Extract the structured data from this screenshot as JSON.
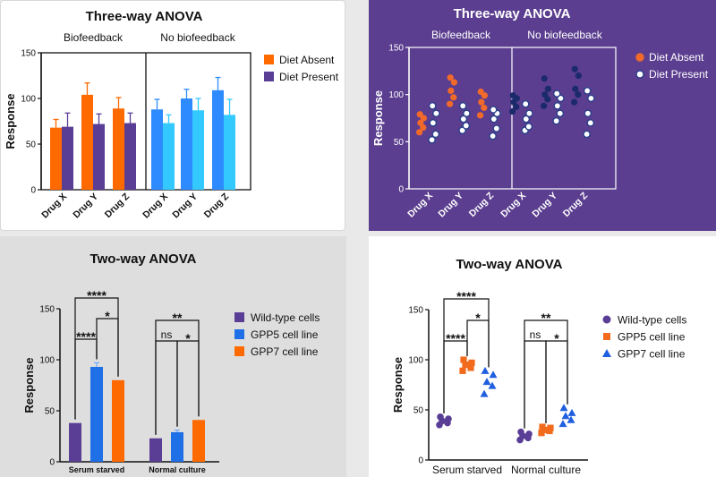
{
  "chart_data": [
    {
      "type": "bar",
      "title": "Three-way ANOVA",
      "ylabel": "Response",
      "ylim": [
        0,
        150
      ],
      "yticks": [
        "0",
        "50",
        "100",
        "150"
      ],
      "groups": [
        "Biofeedback",
        "No biofeedback"
      ],
      "categories": [
        "Drug X",
        "Drug Y",
        "Drug Z",
        "Drug X",
        "Drug Y",
        "Drug Z"
      ],
      "series": [
        {
          "name": "Diet Absent",
          "values": [
            68,
            104,
            89,
            88,
            100,
            109
          ],
          "errors": [
            9,
            13,
            12,
            11,
            10,
            14
          ],
          "color": "#ff6a00",
          "color_nb": "#2e8bff"
        },
        {
          "name": "Diet Present",
          "values": [
            69,
            72,
            73,
            73,
            87,
            82
          ],
          "errors": [
            15,
            11,
            11,
            9,
            13,
            17
          ],
          "color": "#5a3e96",
          "color_nb": "#33c9ff"
        }
      ],
      "legend": "right"
    },
    {
      "type": "scatter",
      "title": "Three-way ANOVA",
      "ylabel": "Response",
      "ylim": [
        0,
        150
      ],
      "yticks": [
        "0",
        "50",
        "100",
        "150"
      ],
      "groups": [
        "Biofeedback",
        "No biofeedback"
      ],
      "categories": [
        "Drug X",
        "Drug Y",
        "Drug Z",
        "Drug X",
        "Drug Y",
        "Drug Z"
      ],
      "series": [
        {
          "name": "Diet Absent",
          "points": [
            [
              60,
              65,
              70,
              75,
              79
            ],
            [
              90,
              97,
              104,
              113,
              118
            ],
            [
              78,
              86,
              92,
              99,
              103
            ],
            [
              82,
              87,
              92,
              96,
              99
            ],
            [
              88,
              95,
              100,
              106,
              117
            ],
            [
              92,
              100,
              106,
              120,
              127
            ]
          ],
          "color": "#f26a2a",
          "color_nb": "#1b2a6b"
        },
        {
          "name": "Diet Present",
          "points": [
            [
              52,
              58,
              70,
              80,
              88
            ],
            [
              62,
              67,
              74,
              80,
              88
            ],
            [
              56,
              64,
              74,
              80,
              84
            ],
            [
              62,
              66,
              74,
              80,
              90
            ],
            [
              72,
              80,
              88,
              96,
              101
            ],
            [
              58,
              70,
              80,
              96,
              104
            ]
          ],
          "color": "#ffffff",
          "color_nb": "#ffffff"
        }
      ],
      "legend": "right"
    },
    {
      "type": "bar",
      "title": "Two-way ANOVA",
      "ylabel": "Response",
      "ylim": [
        0,
        150
      ],
      "yticks": [
        "0",
        "50",
        "100",
        "150"
      ],
      "categories": [
        "Serum starved",
        "Normal culture"
      ],
      "series": [
        {
          "name": "Wild-type cells",
          "values": [
            38,
            23
          ],
          "color": "#5a3e96"
        },
        {
          "name": "GPP5 cell line",
          "values": [
            93,
            29
          ],
          "errors": [
            4,
            2
          ],
          "color": "#1f6fe6"
        },
        {
          "name": "GPP7 cell line",
          "values": [
            80,
            41
          ],
          "color": "#ff6a00"
        }
      ],
      "significance": [
        {
          "label": "****",
          "group": 0,
          "from": 0,
          "to": 2
        },
        {
          "label": "*",
          "group": 0,
          "from": 1,
          "to": 2
        },
        {
          "label": "****",
          "group": 0,
          "from": 0,
          "to": 1
        },
        {
          "label": "**",
          "group": 1,
          "from": 0,
          "to": 2
        },
        {
          "label": "ns",
          "group": 1,
          "from": 0,
          "to": 1
        },
        {
          "label": "*",
          "group": 1,
          "from": 1,
          "to": 2
        }
      ],
      "legend": "right"
    },
    {
      "type": "scatter",
      "title": "Two-way ANOVA",
      "ylabel": "Response",
      "ylim": [
        0,
        150
      ],
      "yticks": [
        "0",
        "50",
        "100",
        "150"
      ],
      "categories": [
        "Serum starved",
        "Normal culture"
      ],
      "series": [
        {
          "name": "Wild-type cells",
          "marker": "circle",
          "color": "#5a3e96",
          "points": [
            [
              35,
              37,
              39,
              41,
              43
            ],
            [
              20,
              22,
              24,
              26,
              28
            ]
          ]
        },
        {
          "name": "GPP5 cell line",
          "marker": "square",
          "color": "#f26a1b",
          "points": [
            [
              89,
              92,
              95,
              97,
              100
            ],
            [
              27,
              29,
              30,
              32,
              33
            ]
          ]
        },
        {
          "name": "GPP7 cell line",
          "marker": "triangle",
          "color": "#1f5fe0",
          "points": [
            [
              66,
              74,
              78,
              85,
              89
            ],
            [
              36,
              40,
              44,
              47,
              52
            ]
          ]
        }
      ],
      "significance": [
        {
          "label": "****",
          "group": 0,
          "from": 0,
          "to": 2
        },
        {
          "label": "*",
          "group": 0,
          "from": 1,
          "to": 2
        },
        {
          "label": "****",
          "group": 0,
          "from": 0,
          "to": 1
        },
        {
          "label": "**",
          "group": 1,
          "from": 0,
          "to": 2
        },
        {
          "label": "ns",
          "group": 1,
          "from": 0,
          "to": 1
        },
        {
          "label": "*",
          "group": 1,
          "from": 1,
          "to": 2
        }
      ],
      "legend": "right"
    }
  ]
}
